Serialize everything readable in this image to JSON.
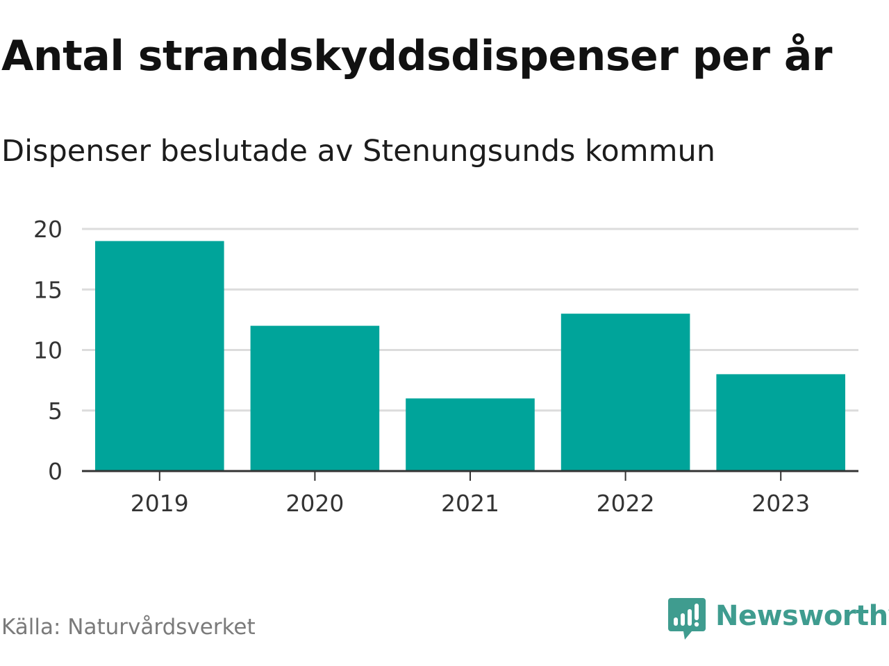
{
  "chart_data": {
    "type": "bar",
    "title": "Antal strandskyddsdispenser per år",
    "subtitle": "Dispenser beslutade av Stenungsunds kommun",
    "categories": [
      "2019",
      "2020",
      "2021",
      "2022",
      "2023"
    ],
    "values": [
      19,
      12,
      6,
      13,
      8
    ],
    "xlabel": "",
    "ylabel": "",
    "ylim": [
      0,
      20
    ],
    "yticks": [
      0,
      5,
      10,
      15,
      20
    ],
    "grid": true,
    "bar_color": "#00a49a",
    "grid_color": "#dcdcdc",
    "axis_color": "#333333"
  },
  "footer": {
    "source": "Källa: Naturvårdsverket",
    "brand": "Newsworthy",
    "brand_color": "#3f9c8f",
    "brand_icon": "newsworthy-logo-icon"
  }
}
